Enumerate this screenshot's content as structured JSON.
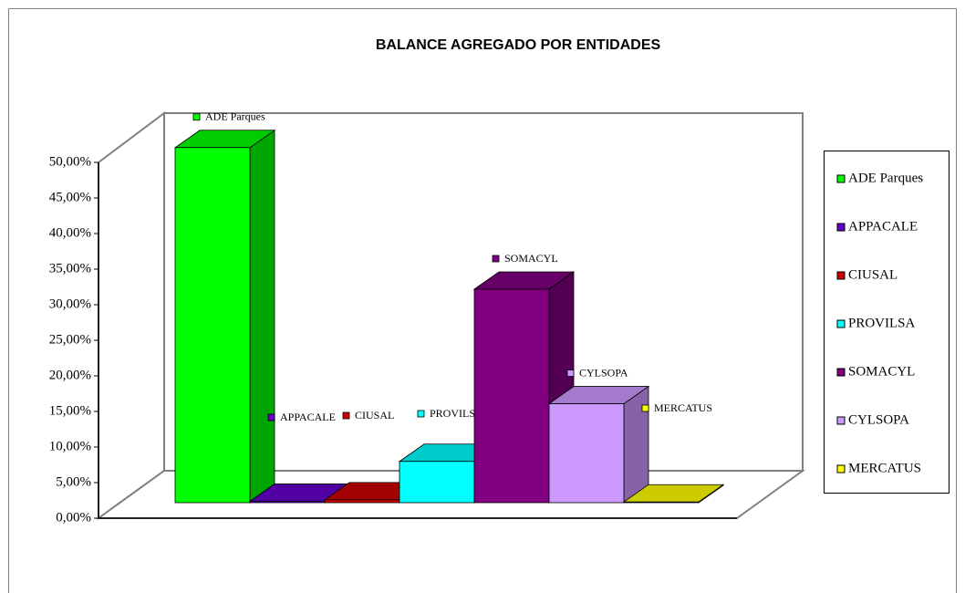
{
  "chart_data": {
    "type": "bar3d",
    "title": "BALANCE AGREGADO POR ENTIDADES",
    "series": [
      {
        "name": "ADE Parques",
        "color": "#00ff00",
        "values": [
          49.9
        ]
      },
      {
        "name": "APPACALE",
        "color": "#6600cc",
        "values": [
          0.2
        ]
      },
      {
        "name": "CIUSAL",
        "color": "#cc0000",
        "values": [
          0.4
        ]
      },
      {
        "name": "PROVILSA",
        "color": "#00ffff",
        "values": [
          5.8
        ]
      },
      {
        "name": "SOMACYL",
        "color": "#800080",
        "values": [
          30
        ]
      },
      {
        "name": "CYLSOPA",
        "color": "#cc99ff",
        "values": [
          13.9
        ]
      },
      {
        "name": "MERCATUS",
        "color": "#ffff00",
        "values": [
          0.1
        ]
      }
    ],
    "ylim": [
      0,
      50
    ],
    "yticks": [
      {
        "value": 0,
        "label": "0,00%"
      },
      {
        "value": 5,
        "label": "5,00%"
      },
      {
        "value": 10,
        "label": "10,00%"
      },
      {
        "value": 15,
        "label": "15,00%"
      },
      {
        "value": 20,
        "label": "20,00%"
      },
      {
        "value": 25,
        "label": "25,00%"
      },
      {
        "value": 30,
        "label": "30,00%"
      },
      {
        "value": 35,
        "label": "35,00%"
      },
      {
        "value": 40,
        "label": "40,00%"
      },
      {
        "value": 45,
        "label": "45,00%"
      },
      {
        "value": 50,
        "label": "50,00%"
      }
    ],
    "grid": false,
    "legend": "right"
  }
}
